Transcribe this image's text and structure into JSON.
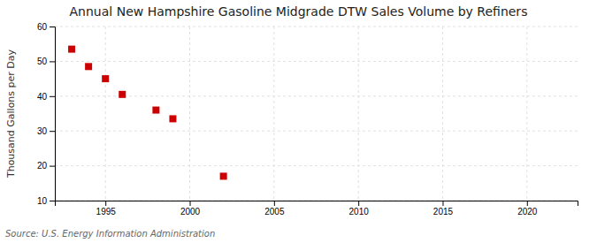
{
  "chart_data": {
    "type": "scatter",
    "title": "Annual New Hampshire Gasoline Midgrade DTW Sales Volume by Refiners",
    "ylabel": "Thousand Gallons per Day",
    "annotations": [
      "Source: U.S. Energy Information Administration"
    ],
    "x": [
      1993,
      1994,
      1995,
      1996,
      1998,
      1999,
      2002
    ],
    "values": [
      53.5,
      48.5,
      45.0,
      40.5,
      36.0,
      33.5,
      17.0
    ],
    "color": "#cc0000",
    "marker": "square",
    "xlim": [
      1992,
      2023
    ],
    "xticks": [
      1995,
      2000,
      2005,
      2010,
      2015,
      2020
    ],
    "ylim": [
      10,
      60
    ],
    "yticks": [
      10,
      20,
      30,
      40,
      50,
      60
    ],
    "grid": true
  }
}
